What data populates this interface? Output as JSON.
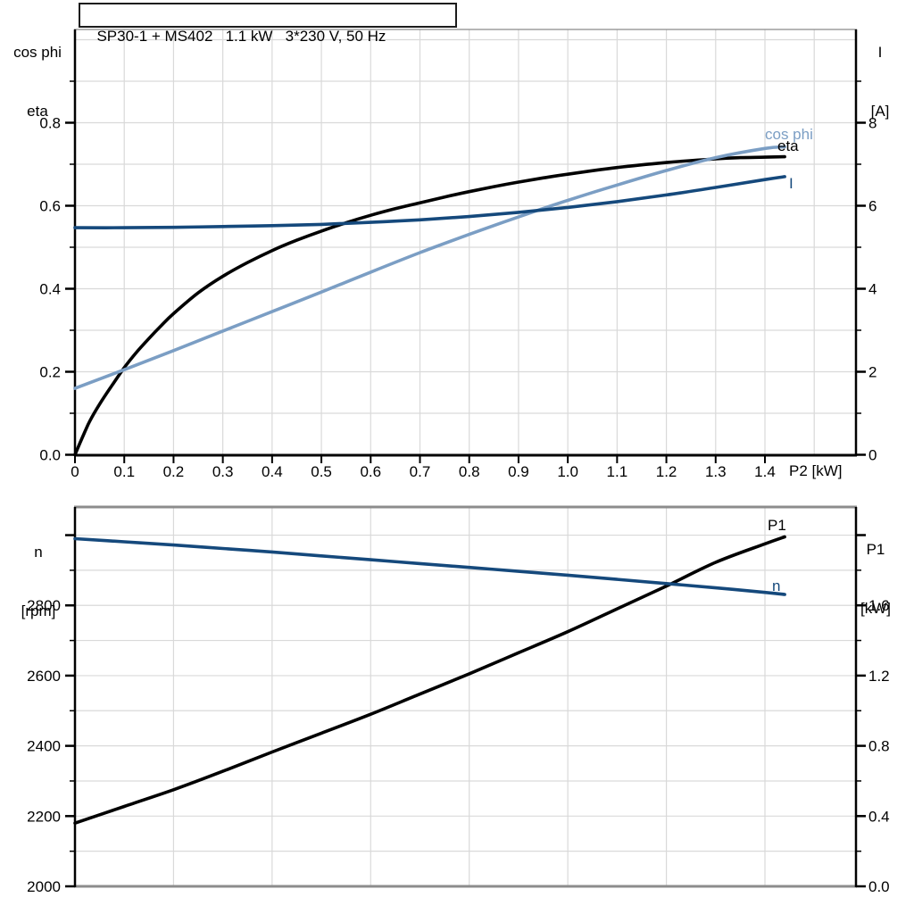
{
  "title": "SP30-1 + MS402   1.1 kW   3*230 V, 50 Hz",
  "colors": {
    "black": "#000000",
    "dark_blue": "#15497c",
    "light_blue": "#7b9ec4",
    "grid": "#d9d9d9",
    "frame_gray": "#8c8c8c",
    "axis_black": "#000000"
  },
  "chart_data": [
    {
      "id": "top",
      "type": "line",
      "title": "SP30-1 + MS402   1.1 kW   3*230 V, 50 Hz",
      "x_axis": {
        "label": "P2 [kW]",
        "min": 0,
        "max": 1.585,
        "grid_step": 0.1,
        "major_values": [
          0,
          0.1,
          0.2,
          0.3,
          0.4,
          0.5,
          0.6,
          0.7,
          0.8,
          0.9,
          1.0,
          1.1,
          1.2,
          1.3,
          1.4
        ],
        "major_labels": [
          "0",
          "0.1",
          "0.2",
          "0.3",
          "0.4",
          "0.5",
          "0.6",
          "0.7",
          "0.8",
          "0.9",
          "1.0",
          "1.1",
          "1.2",
          "1.3",
          "1.4"
        ]
      },
      "y_left": {
        "header": [
          "cos phi",
          "eta"
        ],
        "min": 0,
        "max": 1.0,
        "grid_step": 0.1,
        "major_values": [
          0,
          0.2,
          0.4,
          0.6,
          0.8
        ],
        "major_labels": [
          "0.0",
          "0.2",
          "0.4",
          "0.6",
          "0.8"
        ],
        "minor_values": [
          0.1,
          0.3,
          0.5,
          0.7,
          0.9
        ]
      },
      "y_right": {
        "header": [
          "I",
          "[A]"
        ],
        "min": 0,
        "max": 10,
        "major_values": [
          0,
          2,
          4,
          6,
          8
        ],
        "major_labels": [
          "0",
          "2",
          "4",
          "6",
          "8"
        ],
        "minor_values": [
          1,
          3,
          5,
          7,
          9
        ]
      },
      "series": [
        {
          "name": "eta",
          "color_key": "black",
          "axis": "left",
          "x": [
            0,
            0.01,
            0.02,
            0.03,
            0.05,
            0.07,
            0.1,
            0.125,
            0.15,
            0.175,
            0.2,
            0.25,
            0.3,
            0.35,
            0.4,
            0.45,
            0.5,
            0.55,
            0.6,
            0.65,
            0.7,
            0.75,
            0.8,
            0.85,
            0.9,
            0.95,
            1.0,
            1.1,
            1.2,
            1.3,
            1.35,
            1.4,
            1.44
          ],
          "y": [
            0,
            0.028,
            0.055,
            0.081,
            0.122,
            0.158,
            0.21,
            0.247,
            0.28,
            0.311,
            0.34,
            0.39,
            0.43,
            0.463,
            0.492,
            0.517,
            0.539,
            0.559,
            0.577,
            0.593,
            0.607,
            0.621,
            0.634,
            0.646,
            0.657,
            0.667,
            0.676,
            0.692,
            0.704,
            0.713,
            0.716,
            0.717,
            0.718
          ]
        },
        {
          "name": "cos phi",
          "color_key": "light_blue",
          "axis": "left",
          "x": [
            0,
            0.1,
            0.2,
            0.3,
            0.4,
            0.5,
            0.6,
            0.7,
            0.8,
            0.9,
            1.0,
            1.1,
            1.2,
            1.3,
            1.4,
            1.44
          ],
          "y": [
            0.16,
            0.205,
            0.251,
            0.298,
            0.345,
            0.392,
            0.44,
            0.487,
            0.531,
            0.573,
            0.613,
            0.65,
            0.685,
            0.716,
            0.738,
            0.742
          ]
        },
        {
          "name": "I",
          "color_key": "dark_blue",
          "axis": "right",
          "x": [
            0,
            0.1,
            0.2,
            0.3,
            0.4,
            0.5,
            0.6,
            0.7,
            0.8,
            0.9,
            1.0,
            1.1,
            1.2,
            1.3,
            1.4,
            1.44
          ],
          "y": [
            5.47,
            5.47,
            5.48,
            5.5,
            5.52,
            5.55,
            5.6,
            5.66,
            5.74,
            5.84,
            5.96,
            6.1,
            6.26,
            6.44,
            6.63,
            6.7
          ]
        }
      ]
    },
    {
      "id": "bottom",
      "type": "line",
      "x_axis": {
        "label": "",
        "min": 0,
        "max": 1.585,
        "grid_step": 0.2,
        "major_values": [],
        "major_labels": []
      },
      "y_left": {
        "header": [
          "n",
          "[rpm]"
        ],
        "min": 2000,
        "max": 3081,
        "grid_step": 100,
        "major_values": [
          2000,
          2200,
          2400,
          2600,
          2800,
          3000
        ],
        "major_labels": [
          "2000",
          "2200",
          "2400",
          "2600",
          "2800",
          ""
        ],
        "minor_values": [
          2100,
          2300,
          2500,
          2700,
          2900
        ]
      },
      "y_right": {
        "header": [
          "P1",
          "[kW]"
        ],
        "min": 0,
        "max": 2.163,
        "major_values": [
          0,
          0.4,
          0.8,
          1.2,
          1.6,
          2.0
        ],
        "major_labels": [
          "0.0",
          "0.4",
          "0.8",
          "1.2",
          "1.6",
          ""
        ],
        "minor_values": [
          0.2,
          0.6,
          1.0,
          1.4,
          1.8
        ]
      },
      "series": [
        {
          "name": "P1",
          "color_key": "black",
          "axis": "right",
          "x": [
            0,
            0.1,
            0.2,
            0.3,
            0.4,
            0.5,
            0.6,
            0.7,
            0.8,
            0.9,
            1.0,
            1.1,
            1.2,
            1.3,
            1.4,
            1.44
          ],
          "y": [
            0.36,
            0.455,
            0.55,
            0.655,
            0.765,
            0.872,
            0.98,
            1.095,
            1.21,
            1.33,
            1.45,
            1.58,
            1.71,
            1.845,
            1.95,
            1.99
          ]
        },
        {
          "name": "n",
          "color_key": "dark_blue",
          "axis": "left",
          "x": [
            0,
            0.1,
            0.2,
            0.3,
            0.4,
            0.5,
            0.6,
            0.7,
            0.8,
            0.9,
            1.0,
            1.1,
            1.2,
            1.3,
            1.4,
            1.44
          ],
          "y": [
            2990,
            2981,
            2972,
            2962,
            2952,
            2941,
            2930,
            2919,
            2908,
            2897,
            2886,
            2874,
            2862,
            2850,
            2837,
            2831
          ]
        }
      ]
    }
  ]
}
